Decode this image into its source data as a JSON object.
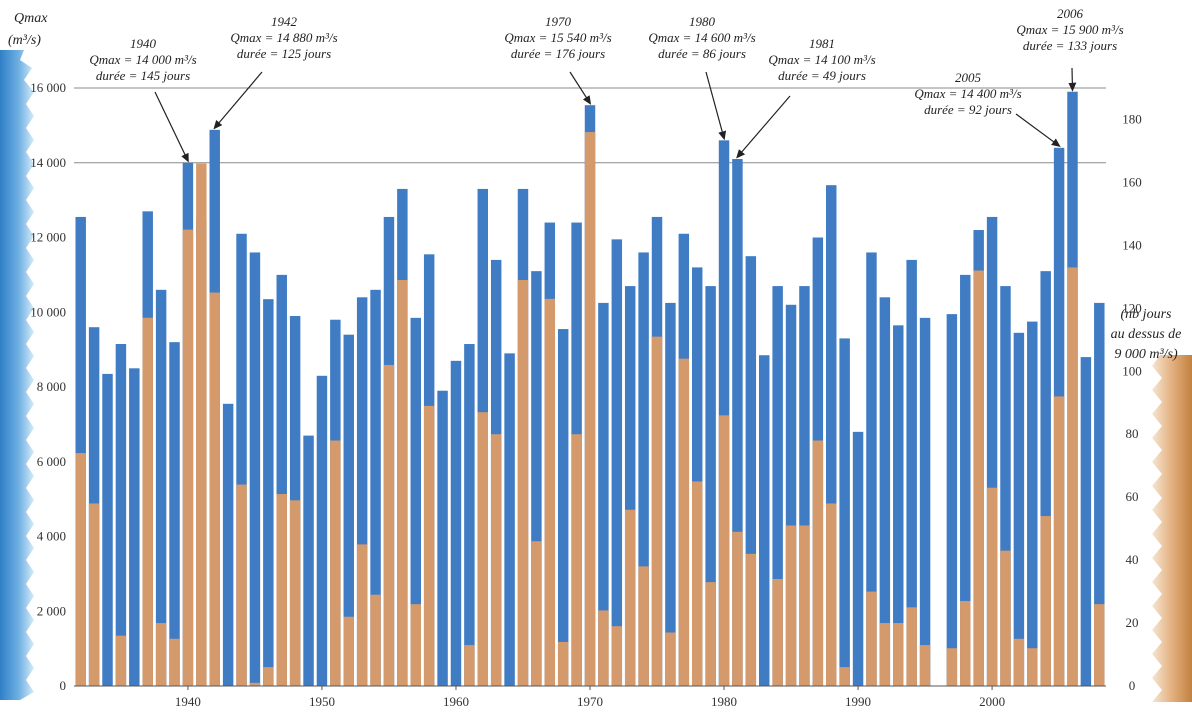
{
  "chart_data": {
    "type": "bar",
    "title": "",
    "left_axis_label": [
      "Qmax",
      "(m³/s)"
    ],
    "right_axis_label": [
      "(nb jours",
      "au dessus de",
      "9 000 m³/s)"
    ],
    "ylim_left": [
      0,
      16000
    ],
    "y_ticks_left": [
      0,
      2000,
      4000,
      6000,
      8000,
      10000,
      12000,
      14000,
      16000
    ],
    "y_tick_labels_left": [
      "0",
      "2 000",
      "4 000",
      "6 000",
      "8 000",
      "10 000",
      "12 000",
      "14 000",
      "16 000"
    ],
    "ylim_right": [
      0,
      190
    ],
    "y_ticks_right": [
      0,
      20,
      40,
      60,
      80,
      100,
      120,
      140,
      160,
      180
    ],
    "x_ticks": [
      1940,
      1950,
      1960,
      1970,
      1980,
      1990,
      2000
    ],
    "xlim": [
      1931.5,
      2008.5
    ],
    "grid_lines_left": [
      14000,
      16000
    ],
    "series": [
      {
        "name": "Qmax",
        "color": "#3f7cc4",
        "points": [
          [
            1932,
            12550
          ],
          [
            1933,
            9600
          ],
          [
            1934,
            8350
          ],
          [
            1935,
            9150
          ],
          [
            1936,
            8500
          ],
          [
            1937,
            12700
          ],
          [
            1938,
            10600
          ],
          [
            1939,
            9200
          ],
          [
            1940,
            14000
          ],
          [
            1941,
            12500
          ],
          [
            1942,
            14880
          ],
          [
            1943,
            7550
          ],
          [
            1944,
            12100
          ],
          [
            1945,
            11600
          ],
          [
            1946,
            10350
          ],
          [
            1947,
            11000
          ],
          [
            1948,
            9900
          ],
          [
            1949,
            6700
          ],
          [
            1950,
            8300
          ],
          [
            1951,
            9800
          ],
          [
            1952,
            9400
          ],
          [
            1953,
            10400
          ],
          [
            1954,
            10600
          ],
          [
            1955,
            12550
          ],
          [
            1956,
            13300
          ],
          [
            1957,
            9850
          ],
          [
            1958,
            11550
          ],
          [
            1959,
            7900
          ],
          [
            1960,
            8700
          ],
          [
            1961,
            9150
          ],
          [
            1962,
            13300
          ],
          [
            1963,
            11400
          ],
          [
            1964,
            8900
          ],
          [
            1965,
            13300
          ],
          [
            1966,
            11100
          ],
          [
            1967,
            12400
          ],
          [
            1968,
            9550
          ],
          [
            1969,
            12400
          ],
          [
            1970,
            15540
          ],
          [
            1971,
            10250
          ],
          [
            1972,
            11950
          ],
          [
            1973,
            10700
          ],
          [
            1974,
            11600
          ],
          [
            1975,
            12550
          ],
          [
            1976,
            10250
          ],
          [
            1977,
            12100
          ],
          [
            1978,
            11200
          ],
          [
            1979,
            10700
          ],
          [
            1980,
            14600
          ],
          [
            1981,
            14100
          ],
          [
            1982,
            11500
          ],
          [
            1983,
            8850
          ],
          [
            1984,
            10700
          ],
          [
            1985,
            10200
          ],
          [
            1986,
            10700
          ],
          [
            1987,
            12000
          ],
          [
            1988,
            13400
          ],
          [
            1989,
            9300
          ],
          [
            1990,
            6800
          ],
          [
            1991,
            11600
          ],
          [
            1992,
            10400
          ],
          [
            1993,
            9650
          ],
          [
            1994,
            11400
          ],
          [
            1995,
            9850
          ],
          [
            1997,
            9950
          ],
          [
            1998,
            11000
          ],
          [
            1999,
            12200
          ],
          [
            2000,
            12550
          ],
          [
            2001,
            10700
          ],
          [
            2002,
            9450
          ],
          [
            2003,
            9750
          ],
          [
            2004,
            11100
          ],
          [
            2005,
            14400
          ],
          [
            2006,
            15900
          ],
          [
            2007,
            8800
          ],
          [
            2008,
            10250
          ]
        ]
      },
      {
        "name": "nb jours au dessus de 9 000 m³/s",
        "color": "#d49a6c",
        "points": [
          [
            1932,
            74
          ],
          [
            1933,
            58
          ],
          [
            1934,
            0
          ],
          [
            1935,
            16
          ],
          [
            1936,
            0
          ],
          [
            1937,
            117
          ],
          [
            1938,
            20
          ],
          [
            1939,
            15
          ],
          [
            1940,
            145
          ],
          [
            1941,
            166
          ],
          [
            1942,
            125
          ],
          [
            1943,
            0
          ],
          [
            1944,
            64
          ],
          [
            1945,
            1
          ],
          [
            1946,
            6
          ],
          [
            1947,
            61
          ],
          [
            1948,
            59
          ],
          [
            1949,
            0
          ],
          [
            1950,
            0
          ],
          [
            1951,
            78
          ],
          [
            1952,
            22
          ],
          [
            1953,
            45
          ],
          [
            1954,
            29
          ],
          [
            1955,
            102
          ],
          [
            1956,
            129
          ],
          [
            1957,
            26
          ],
          [
            1958,
            89
          ],
          [
            1959,
            0
          ],
          [
            1960,
            0
          ],
          [
            1961,
            13
          ],
          [
            1962,
            87
          ],
          [
            1963,
            80
          ],
          [
            1964,
            0
          ],
          [
            1965,
            129
          ],
          [
            1966,
            46
          ],
          [
            1967,
            123
          ],
          [
            1968,
            14
          ],
          [
            1969,
            80
          ],
          [
            1970,
            176
          ],
          [
            1971,
            24
          ],
          [
            1972,
            19
          ],
          [
            1973,
            56
          ],
          [
            1974,
            38
          ],
          [
            1975,
            111
          ],
          [
            1976,
            17
          ],
          [
            1977,
            104
          ],
          [
            1978,
            65
          ],
          [
            1979,
            33
          ],
          [
            1980,
            86
          ],
          [
            1981,
            49
          ],
          [
            1982,
            42
          ],
          [
            1983,
            0
          ],
          [
            1984,
            34
          ],
          [
            1985,
            51
          ],
          [
            1986,
            51
          ],
          [
            1987,
            78
          ],
          [
            1988,
            58
          ],
          [
            1989,
            6
          ],
          [
            1990,
            0
          ],
          [
            1991,
            30
          ],
          [
            1992,
            20
          ],
          [
            1993,
            20
          ],
          [
            1994,
            25
          ],
          [
            1995,
            13
          ],
          [
            1997,
            12
          ],
          [
            1998,
            27
          ],
          [
            1999,
            132
          ],
          [
            2000,
            63
          ],
          [
            2001,
            43
          ],
          [
            2002,
            15
          ],
          [
            2003,
            12
          ],
          [
            2004,
            54
          ],
          [
            2005,
            92
          ],
          [
            2006,
            133
          ],
          [
            2007,
            0
          ],
          [
            2008,
            26
          ]
        ]
      }
    ],
    "annotations": [
      {
        "year": 1940,
        "lines": [
          "1940",
          "Qmax = 14 000 m³/s",
          "durée = 145 jours"
        ],
        "arrow_to": "bar"
      },
      {
        "year": 1942,
        "lines": [
          "1942",
          "Qmax = 14 880 m³/s",
          "durée = 125 jours"
        ],
        "arrow_to": "bar"
      },
      {
        "year": 1970,
        "lines": [
          "1970",
          "Qmax = 15 540 m³/s",
          "durée = 176 jours"
        ],
        "arrow_to": "bar"
      },
      {
        "year": 1980,
        "lines": [
          "1980",
          "Qmax = 14 600 m³/s",
          "durée = 86 jours"
        ],
        "arrow_to": "bar"
      },
      {
        "year": 1981,
        "lines": [
          "1981",
          "Qmax = 14 100 m³/s",
          "durée = 49 jours"
        ],
        "arrow_to": "bar"
      },
      {
        "year": 2005,
        "lines": [
          "2005",
          "Qmax = 14 400 m³/s",
          "durée = 92 jours"
        ],
        "arrow_to": "bar"
      },
      {
        "year": 2006,
        "lines": [
          "2006",
          "Qmax = 15 900 m³/s",
          "durée = 133 jours"
        ],
        "arrow_to": "bar"
      }
    ],
    "legend": "none",
    "grid": "partial"
  }
}
